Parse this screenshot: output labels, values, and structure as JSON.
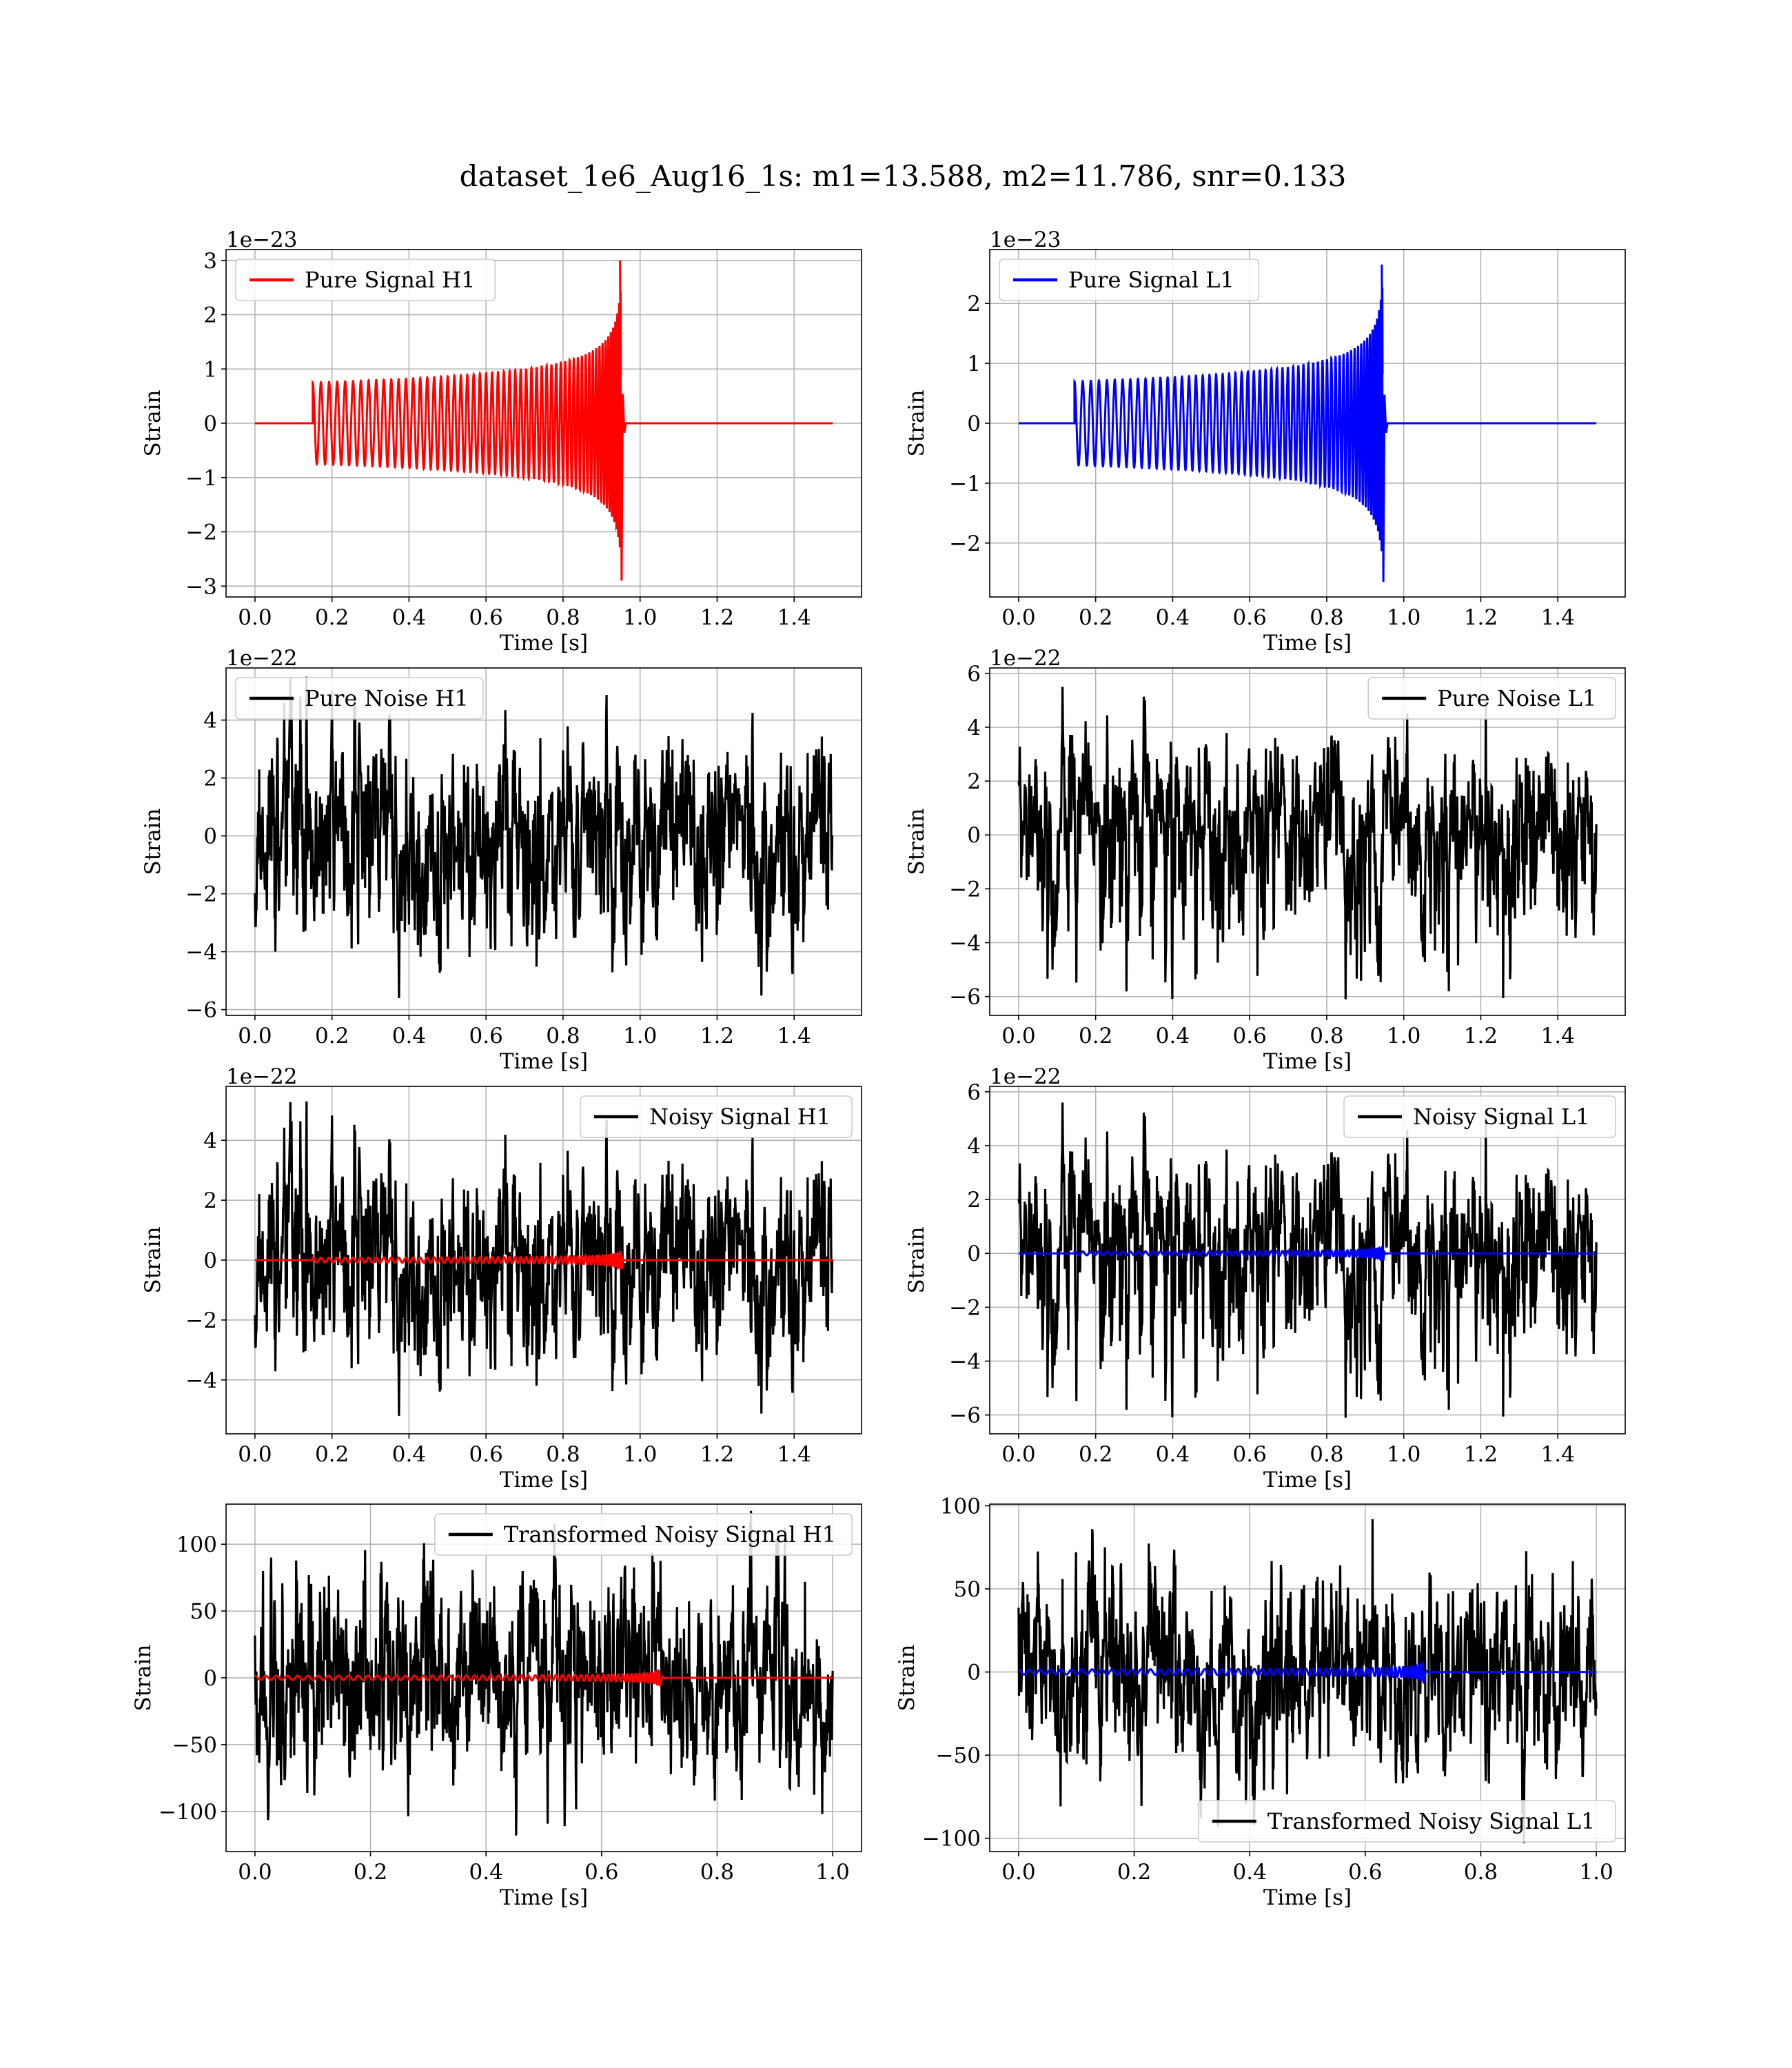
{
  "suptitle": "dataset_1e6_Aug16_1s: m1=13.588, m2=11.786, snr=0.133",
  "colors": {
    "h1_signal": "#ff0000",
    "l1_signal": "#0000ff",
    "noise": "#000000",
    "grid": "#b0b0b0"
  },
  "chart_data": [
    {
      "id": "pure-signal-h1",
      "type": "line",
      "xlabel": "Time [s]",
      "ylabel": "Strain",
      "offset_text": "1e−23",
      "legend": {
        "label": "Pure Signal H1",
        "placement": "upper-left"
      },
      "xlim": [
        -0.075,
        1.575
      ],
      "ylim": [
        -3.2,
        3.2
      ],
      "xticks": [
        0.0,
        0.2,
        0.4,
        0.6,
        0.8,
        1.0,
        1.2,
        1.4
      ],
      "xtick_labels": [
        "0.0",
        "0.2",
        "0.4",
        "0.6",
        "0.8",
        "1.0",
        "1.2",
        "1.4"
      ],
      "yticks": [
        -3,
        -2,
        -1,
        0,
        1,
        2,
        3
      ],
      "ytick_labels": [
        "−3",
        "−2",
        "−1",
        "0",
        "1",
        "2",
        "3"
      ],
      "series": [
        {
          "kind": "chirp",
          "color": "#ff0000",
          "t_start": 0.15,
          "t_merge": 0.95,
          "t_end": 1.5,
          "amp_start": 0.75,
          "amp_peak": 3.0,
          "amp_neg_peak": -2.9,
          "n_cycles": 60
        }
      ]
    },
    {
      "id": "pure-signal-l1",
      "type": "line",
      "xlabel": "Time [s]",
      "ylabel": "Strain",
      "offset_text": "1e−23",
      "legend": {
        "label": "Pure Signal L1",
        "placement": "upper-left"
      },
      "xlim": [
        -0.075,
        1.575
      ],
      "ylim": [
        -2.9,
        2.9
      ],
      "xticks": [
        0.0,
        0.2,
        0.4,
        0.6,
        0.8,
        1.0,
        1.2,
        1.4
      ],
      "xtick_labels": [
        "0.0",
        "0.2",
        "0.4",
        "0.6",
        "0.8",
        "1.0",
        "1.2",
        "1.4"
      ],
      "yticks": [
        -2,
        -1,
        0,
        1,
        2
      ],
      "ytick_labels": [
        "−2",
        "−1",
        "0",
        "1",
        "2"
      ],
      "series": [
        {
          "kind": "chirp",
          "color": "#0000ff",
          "t_start": 0.145,
          "t_merge": 0.945,
          "t_end": 1.5,
          "amp_start": 0.7,
          "amp_peak": 2.65,
          "amp_neg_peak": -2.65,
          "n_cycles": 60
        }
      ]
    },
    {
      "id": "pure-noise-h1",
      "type": "line",
      "xlabel": "Time [s]",
      "ylabel": "Strain",
      "offset_text": "1e−22",
      "legend": {
        "label": "Pure Noise H1",
        "placement": "upper-left"
      },
      "xlim": [
        -0.075,
        1.575
      ],
      "ylim": [
        -6.2,
        5.8
      ],
      "xticks": [
        0.0,
        0.2,
        0.4,
        0.6,
        0.8,
        1.0,
        1.2,
        1.4
      ],
      "xtick_labels": [
        "0.0",
        "0.2",
        "0.4",
        "0.6",
        "0.8",
        "1.0",
        "1.2",
        "1.4"
      ],
      "yticks": [
        -6,
        -4,
        -2,
        0,
        2,
        4
      ],
      "ytick_labels": [
        "−6",
        "−4",
        "−2",
        "0",
        "2",
        "4"
      ],
      "series": [
        {
          "kind": "noise",
          "color": "#000000",
          "t_start": 0.0,
          "t_end": 1.5,
          "max": 5.5,
          "min": -5.6,
          "spread": 1.6,
          "seed": 11
        }
      ]
    },
    {
      "id": "pure-noise-l1",
      "type": "line",
      "xlabel": "Time [s]",
      "ylabel": "Strain",
      "offset_text": "1e−22",
      "legend": {
        "label": "Pure Noise L1",
        "placement": "upper-right"
      },
      "xlim": [
        -0.075,
        1.575
      ],
      "ylim": [
        -6.7,
        6.2
      ],
      "xticks": [
        0.0,
        0.2,
        0.4,
        0.6,
        0.8,
        1.0,
        1.2,
        1.4
      ],
      "xtick_labels": [
        "0.0",
        "0.2",
        "0.4",
        "0.6",
        "0.8",
        "1.0",
        "1.2",
        "1.4"
      ],
      "yticks": [
        -6,
        -4,
        -2,
        0,
        2,
        4,
        6
      ],
      "ytick_labels": [
        "−6",
        "−4",
        "−2",
        "0",
        "2",
        "4",
        "6"
      ],
      "series": [
        {
          "kind": "noise",
          "color": "#000000",
          "t_start": 0.0,
          "t_end": 1.5,
          "max": 5.5,
          "min": -6.1,
          "spread": 1.6,
          "seed": 23
        }
      ]
    },
    {
      "id": "noisy-signal-h1",
      "type": "line",
      "xlabel": "Time [s]",
      "ylabel": "Strain",
      "offset_text": "1e−22",
      "legend": {
        "label": "Noisy Signal H1",
        "placement": "upper-right"
      },
      "xlim": [
        -0.075,
        1.575
      ],
      "ylim": [
        -5.8,
        5.8
      ],
      "xticks": [
        0.0,
        0.2,
        0.4,
        0.6,
        0.8,
        1.0,
        1.2,
        1.4
      ],
      "xtick_labels": [
        "0.0",
        "0.2",
        "0.4",
        "0.6",
        "0.8",
        "1.0",
        "1.2",
        "1.4"
      ],
      "yticks": [
        -4,
        -2,
        0,
        2,
        4
      ],
      "ytick_labels": [
        "−4",
        "−2",
        "0",
        "2",
        "4"
      ],
      "series": [
        {
          "kind": "noise",
          "color": "#000000",
          "t_start": 0.0,
          "t_end": 1.5,
          "max": 5.3,
          "min": -5.2,
          "spread": 1.6,
          "seed": 11
        },
        {
          "kind": "chirp",
          "color": "#ff0000",
          "t_start": 0.15,
          "t_merge": 0.95,
          "t_end": 1.5,
          "amp_start": 0.08,
          "amp_peak": 0.3,
          "amp_neg_peak": -0.3,
          "n_cycles": 60
        }
      ]
    },
    {
      "id": "noisy-signal-l1",
      "type": "line",
      "xlabel": "Time [s]",
      "ylabel": "Strain",
      "offset_text": "1e−22",
      "legend": {
        "label": "Noisy Signal L1",
        "placement": "upper-right"
      },
      "xlim": [
        -0.075,
        1.575
      ],
      "ylim": [
        -6.7,
        6.2
      ],
      "xticks": [
        0.0,
        0.2,
        0.4,
        0.6,
        0.8,
        1.0,
        1.2,
        1.4
      ],
      "xtick_labels": [
        "0.0",
        "0.2",
        "0.4",
        "0.6",
        "0.8",
        "1.0",
        "1.2",
        "1.4"
      ],
      "yticks": [
        -6,
        -4,
        -2,
        0,
        2,
        4,
        6
      ],
      "ytick_labels": [
        "−6",
        "−4",
        "−2",
        "0",
        "2",
        "4",
        "6"
      ],
      "series": [
        {
          "kind": "noise",
          "color": "#000000",
          "t_start": 0.0,
          "t_end": 1.5,
          "max": 5.6,
          "min": -6.1,
          "spread": 1.6,
          "seed": 23
        },
        {
          "kind": "chirp",
          "color": "#0000ff",
          "t_start": 0.145,
          "t_merge": 0.945,
          "t_end": 1.5,
          "amp_start": 0.07,
          "amp_peak": 0.27,
          "amp_neg_peak": -0.27,
          "n_cycles": 60
        }
      ]
    },
    {
      "id": "transformed-noisy-signal-h1",
      "type": "line",
      "xlabel": "Time [s]",
      "ylabel": "Strain",
      "offset_text": "",
      "legend": {
        "label": "Transformed Noisy Signal H1",
        "placement": "upper-right"
      },
      "xlim": [
        -0.05,
        1.05
      ],
      "ylim": [
        -130,
        130
      ],
      "xticks": [
        0.0,
        0.2,
        0.4,
        0.6,
        0.8,
        1.0
      ],
      "xtick_labels": [
        "0.0",
        "0.2",
        "0.4",
        "0.6",
        "0.8",
        "1.0"
      ],
      "yticks": [
        -100,
        -50,
        0,
        50,
        100
      ],
      "ytick_labels": [
        "−100",
        "−50",
        "0",
        "50",
        "100"
      ],
      "series": [
        {
          "kind": "noise",
          "color": "#000000",
          "t_start": 0.0,
          "t_end": 1.0,
          "max": 125,
          "min": -118,
          "spread": 27,
          "seed": 37
        },
        {
          "kind": "chirp",
          "color": "#ff0000",
          "t_start": 0.0,
          "t_merge": 0.7,
          "t_end": 1.0,
          "amp_start": 1.5,
          "amp_peak": 6,
          "amp_neg_peak": -6,
          "n_cycles": 60
        }
      ]
    },
    {
      "id": "transformed-noisy-signal-l1",
      "type": "line",
      "xlabel": "Time [s]",
      "ylabel": "Strain",
      "offset_text": "",
      "legend": {
        "label": "Transformed Noisy Signal L1",
        "placement": "lower-right"
      },
      "xlim": [
        -0.05,
        1.05
      ],
      "ylim": [
        -108,
        101
      ],
      "xticks": [
        0.0,
        0.2,
        0.4,
        0.6,
        0.8,
        1.0
      ],
      "xtick_labels": [
        "0.0",
        "0.2",
        "0.4",
        "0.6",
        "0.8",
        "1.0"
      ],
      "yticks": [
        -100,
        -50,
        0,
        50,
        100
      ],
      "ytick_labels": [
        "−100",
        "−50",
        "0",
        "50",
        "100"
      ],
      "series": [
        {
          "kind": "noise",
          "color": "#000000",
          "t_start": 0.0,
          "t_end": 1.0,
          "max": 92,
          "min": -103,
          "spread": 27,
          "seed": 53
        },
        {
          "kind": "chirp",
          "color": "#0000ff",
          "t_start": 0.0,
          "t_merge": 0.7,
          "t_end": 1.0,
          "amp_start": 1.5,
          "amp_peak": 6,
          "amp_neg_peak": -6,
          "n_cycles": 60
        }
      ]
    }
  ]
}
